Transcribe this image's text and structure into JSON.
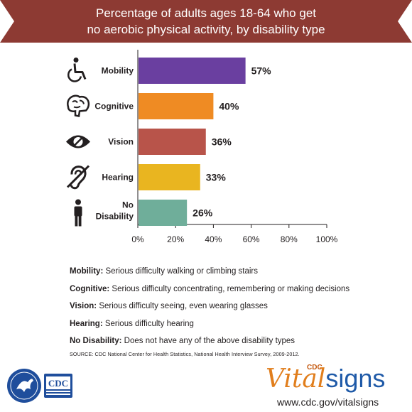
{
  "header": {
    "title_line1": "Percentage of adults ages 18-64 who get",
    "title_line2": "no aerobic physical activity, by disability type"
  },
  "colors": {
    "banner": "#8d3a33",
    "mobility": "#6a3fa0",
    "cognitive": "#ef8b23",
    "vision": "#b8544a",
    "hearing": "#e9b520",
    "none": "#6fae9a",
    "axis": "#231f20",
    "icon": "#231f20"
  },
  "chart_data": {
    "type": "bar",
    "orientation": "horizontal",
    "categories": [
      "Mobility",
      "Cognitive",
      "Vision",
      "Hearing",
      "No Disability"
    ],
    "values": [
      57,
      40,
      36,
      33,
      26
    ],
    "value_labels": [
      "57%",
      "40%",
      "36%",
      "33%",
      "26%"
    ],
    "icons": [
      "wheelchair-icon",
      "brain-icon",
      "eye-slash-icon",
      "ear-slash-icon",
      "person-icon"
    ],
    "xlim": [
      0,
      100
    ],
    "xticks": [
      0,
      20,
      40,
      60,
      80,
      100
    ],
    "xtick_labels": [
      "0%",
      "20%",
      "40%",
      "60%",
      "80%",
      "100%"
    ],
    "grid": false
  },
  "legend": [
    {
      "term": "Mobility:",
      "desc": " Serious difficulty walking or climbing stairs"
    },
    {
      "term": "Cognitive:",
      "desc": " Serious difficulty concentrating, remembering or making decisions"
    },
    {
      "term": "Vision:",
      "desc": " Serious difficulty seeing, even wearing glasses"
    },
    {
      "term": "Hearing:",
      "desc": " Serious difficulty hearing"
    },
    {
      "term": "No Disability:",
      "desc": " Does not have any of the above disability types"
    }
  ],
  "source": "SOURCE: CDC National Center for Health Statistics, National Health Interview Survey, 2009-2012.",
  "footer": {
    "cdc_logo_text": "CDC",
    "brand_super": "CDC",
    "brand_part1": "Vital",
    "brand_part2": "signs",
    "url": "www.cdc.gov/vitalsigns"
  }
}
